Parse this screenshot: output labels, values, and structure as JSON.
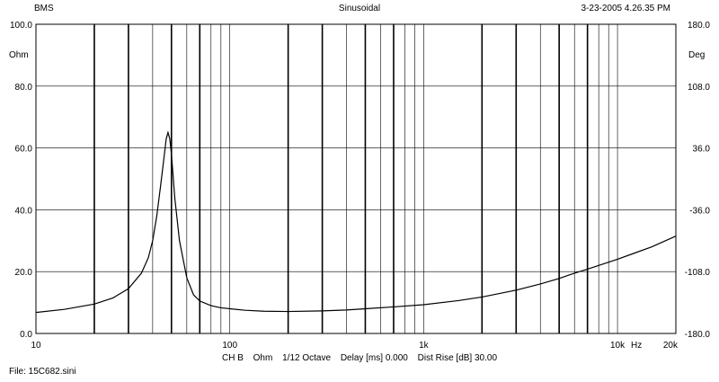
{
  "header": {
    "left": "BMS",
    "center": "Sinusoidal",
    "right": "3-23-2005 4.26.35 PM"
  },
  "footer": {
    "channel": "CH B",
    "unit": "Ohm",
    "octave": "1/12 Octave",
    "delay": "Delay [ms] 0.000",
    "dist_rise": "Dist Rise [dB] 30.00",
    "file": "File: 15C682.sini"
  },
  "colors": {
    "background": "#ffffff",
    "grid": "#000000",
    "curve": "#000000"
  },
  "chart_data": {
    "type": "line",
    "title": "Sinusoidal",
    "x_scale": "log",
    "xlim": [
      10,
      20000
    ],
    "ylim": [
      0,
      100
    ],
    "y2lim": [
      -180,
      180
    ],
    "ylabel": "Ohm",
    "y2label": "Deg",
    "x_unit_label": "Hz",
    "x_tick_labels": [
      {
        "value": 10,
        "label": "10"
      },
      {
        "value": 100,
        "label": "100"
      },
      {
        "value": 1000,
        "label": "1k"
      },
      {
        "value": 10000,
        "label": "10k"
      },
      {
        "value": 20000,
        "label": "20k"
      }
    ],
    "y_tick_labels": [
      "0.0",
      "20.0",
      "40.0",
      "60.0",
      "80.0",
      "100.0"
    ],
    "y_tick_values": [
      0,
      20,
      40,
      60,
      80,
      100
    ],
    "y2_tick_labels": [
      "-180.0",
      "-108.0",
      "-36.0",
      "36.0",
      "108.0",
      "180.0"
    ],
    "y2_tick_values": [
      -180,
      -108,
      -36,
      36,
      108,
      180
    ],
    "grid": true,
    "series": [
      {
        "values_x": [
          10,
          14,
          20,
          25,
          30,
          35,
          38,
          40,
          42,
          44,
          46,
          47,
          48,
          49,
          50,
          52,
          55,
          60,
          65,
          70,
          80,
          90,
          100,
          120,
          150,
          200,
          300,
          400,
          500,
          700,
          1000,
          1500,
          2000,
          3000,
          4000,
          5000,
          6000,
          7000,
          8000,
          10000,
          12000,
          15000,
          20000
        ],
        "values_y": [
          6.8,
          7.8,
          9.5,
          11.5,
          14.5,
          19.5,
          24.5,
          30,
          38,
          48,
          58,
          63,
          65,
          63,
          58,
          44,
          30,
          18,
          12.5,
          10.5,
          9,
          8.3,
          8,
          7.5,
          7.2,
          7.1,
          7.3,
          7.6,
          8,
          8.6,
          9.3,
          10.6,
          11.8,
          14,
          16,
          17.8,
          19.5,
          20.8,
          22,
          24,
          25.8,
          28,
          31.5
        ]
      }
    ]
  }
}
